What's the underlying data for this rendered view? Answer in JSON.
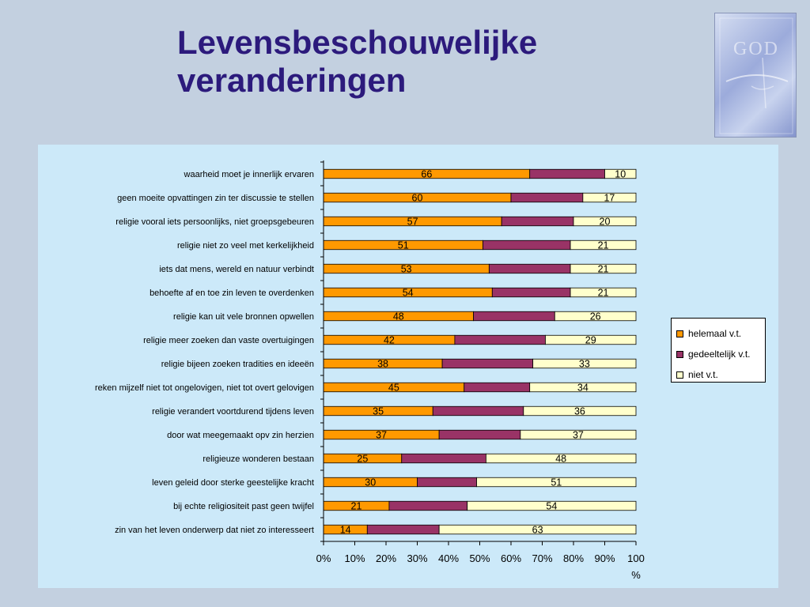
{
  "slide": {
    "title_lines": [
      "Levensbeschouwelijke",
      "veranderingen"
    ]
  },
  "logo": {
    "text": "GOD",
    "colors": [
      "#d6dff2",
      "#8494cd"
    ]
  },
  "colors": {
    "background": "#c3d0e0",
    "title": "#2c1a7c",
    "panel": "#cce9f9"
  },
  "chart_data": {
    "type": "bar",
    "orientation": "horizontal",
    "stacked": "percent",
    "categories": [
      "waarheid moet je innerlijk ervaren",
      "geen moeite opvattingen zin ter discussie te stellen",
      "religie vooral iets persoonlijks, niet groepsgebeuren",
      "religie niet zo veel met kerkelijkheid",
      "iets dat mens, wereld en natuur verbindt",
      "behoefte af en toe zin leven te overdenken",
      "religie kan uit vele bronnen opwellen",
      "religie meer zoeken dan vaste overtuigingen",
      "religie bijeen zoeken tradities en ideeën",
      "reken mijzelf niet tot ongelovigen, niet tot overt gelovigen",
      "religie verandert voortdurend tijdens leven",
      "door wat meegemaakt opv zin herzien",
      "religieuze wonderen bestaan",
      "leven geleid door sterke geestelijke kracht",
      "bij echte religiositeit past geen twijfel",
      "zin van het leven onderwerp dat niet zo interesseert"
    ],
    "series": [
      {
        "name": "helemaal v.t.",
        "color": "#ff9900",
        "values": [
          66,
          60,
          57,
          51,
          53,
          54,
          48,
          42,
          38,
          45,
          35,
          37,
          25,
          30,
          21,
          14
        ],
        "labeled": true
      },
      {
        "name": "gedeeltelijk v.t.",
        "color": "#993366",
        "values": [
          24,
          23,
          23,
          28,
          26,
          25,
          26,
          29,
          29,
          21,
          29,
          26,
          27,
          19,
          25,
          23
        ],
        "labeled": false
      },
      {
        "name": "niet v.t.",
        "color": "#ffffcc",
        "values": [
          10,
          17,
          20,
          21,
          21,
          21,
          26,
          29,
          33,
          34,
          36,
          37,
          48,
          51,
          54,
          63
        ],
        "labeled": true
      }
    ],
    "x_ticks": [
      "0%",
      "10%",
      "20%",
      "30%",
      "40%",
      "50%",
      "60%",
      "70%",
      "80%",
      "90%",
      "100"
    ],
    "x_unit_label": "%",
    "xlim": [
      0,
      100
    ],
    "legend_position": "right"
  }
}
